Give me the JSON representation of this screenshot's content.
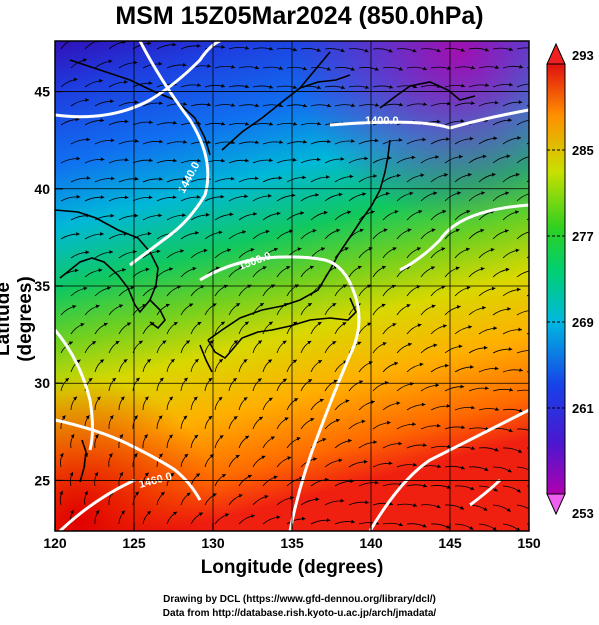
{
  "title": "MSM 15Z05Mar2024 (850.0hPa)",
  "xlabel": "Longitude (degrees)",
  "ylabel": "Latitude  (degrees)",
  "credits": {
    "drawing": "Drawing by DCL (https://www.gfd-dennou.org/library/dcl/)",
    "data": "Data from http://database.rish.kyoto-u.ac.jp/arch/jmadata/"
  },
  "chart_data": {
    "type": "heatmap",
    "title": "MSM 15Z05Mar2024 (850.0hPa)",
    "xlabel": "Longitude (degrees)",
    "ylabel": "Latitude  (degrees)",
    "xlim": [
      120,
      150
    ],
    "ylim": [
      22.4,
      47.6
    ],
    "x_ticks": [
      "120",
      "125",
      "130",
      "135",
      "140",
      "145",
      "150"
    ],
    "y_ticks": [
      "25",
      "30",
      "35",
      "40",
      "45"
    ],
    "x_tick_values": [
      120,
      125,
      130,
      135,
      140,
      145,
      150
    ],
    "y_tick_values": [
      25,
      30,
      35,
      40,
      45
    ],
    "grid": true,
    "colorbar": {
      "min": 253,
      "max": 293,
      "tick_labels": [
        "293",
        "285",
        "277",
        "269",
        "261",
        "253"
      ],
      "tick_values": [
        293,
        285,
        277,
        269,
        261,
        253
      ],
      "extends": "both"
    },
    "contours": [
      {
        "label": "1400.0"
      },
      {
        "label": "1440.0"
      },
      {
        "label": "1500.0"
      },
      {
        "label": "1460.0"
      }
    ]
  }
}
